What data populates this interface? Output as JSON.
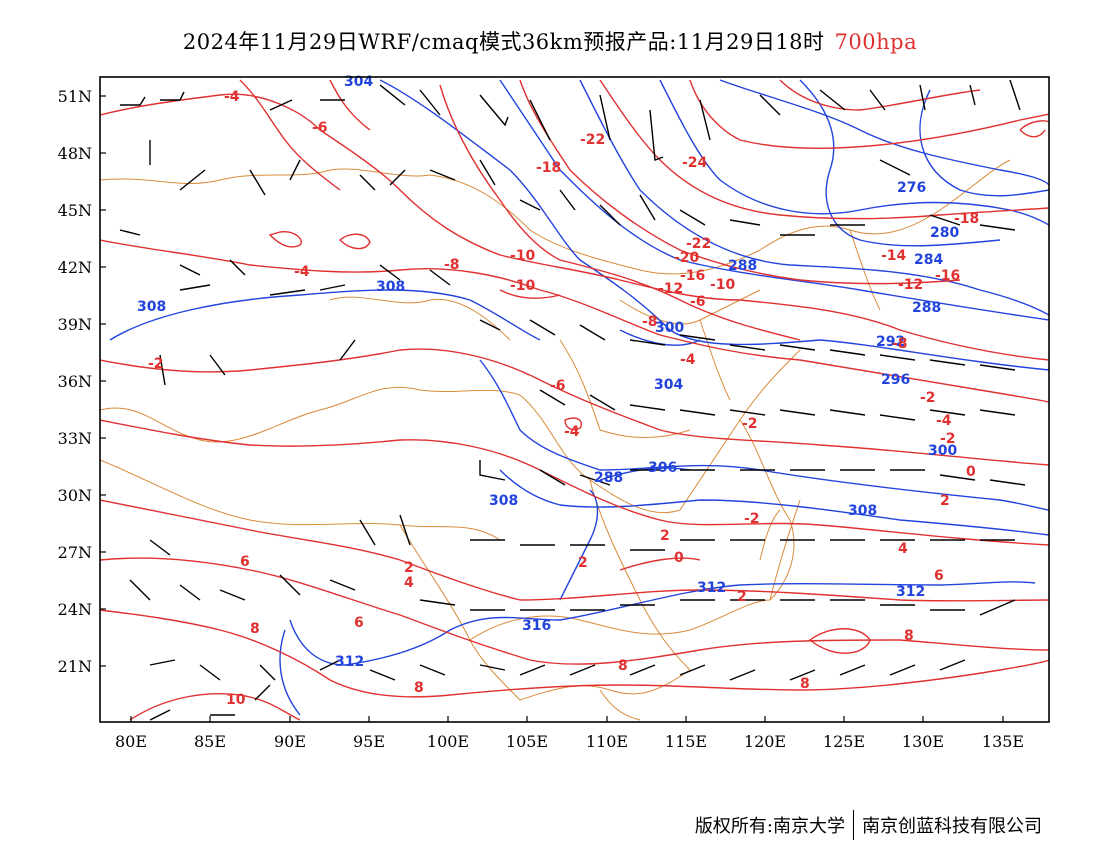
{
  "title": {
    "main": "2024年11月29日WRF/cmaq模式36km预报产品:11月29日18时",
    "level": "700hpa"
  },
  "colors": {
    "temperature": "#e03030",
    "height": "#2244dd",
    "wind": "#000000",
    "border": "#d98a3a"
  },
  "axes": {
    "x_ticks": [
      "80E",
      "85E",
      "90E",
      "95E",
      "100E",
      "105E",
      "110E",
      "115E",
      "120E",
      "125E",
      "130E",
      "135E"
    ],
    "y_ticks": [
      "51N",
      "48N",
      "45N",
      "42N",
      "39N",
      "36N",
      "33N",
      "30N",
      "27N",
      "24N",
      "21N"
    ]
  },
  "height_labels": [
    "304",
    "276",
    "280",
    "284",
    "288",
    "288",
    "288",
    "292",
    "296",
    "300",
    "300",
    "304",
    "306",
    "308",
    "308",
    "308",
    "308",
    "312",
    "312",
    "312",
    "316"
  ],
  "temp_labels": [
    "-4",
    "-6",
    "-22",
    "-18",
    "-24",
    "-18",
    "-16",
    "-14",
    "-22",
    "-20",
    "-16",
    "-10",
    "-10",
    "-8",
    "-12",
    "-10",
    "-12",
    "-6",
    "-8",
    "-4",
    "-6",
    "-4",
    "-2",
    "-2",
    "-2",
    "-2",
    "0",
    "0",
    "2",
    "2",
    "2",
    "2",
    "4",
    "4",
    "6",
    "6",
    "6",
    "8",
    "8",
    "8",
    "10",
    "-2",
    "-4",
    "-8",
    "-4",
    "2",
    "-6",
    "-14",
    "-10",
    "-2"
  ],
  "footer": {
    "left": "版权所有:南京大学",
    "right": "南京创蓝科技有限公司"
  }
}
